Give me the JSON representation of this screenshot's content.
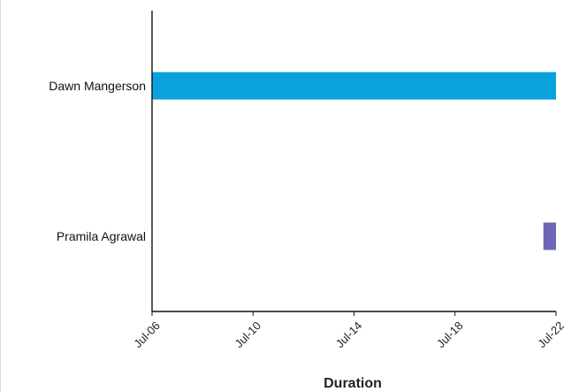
{
  "chart_data": {
    "type": "bar",
    "orientation": "horizontal-gantt",
    "title": "",
    "xlabel": "Duration",
    "ylabel": "",
    "xlim": [
      "Jul-06",
      "Jul-22"
    ],
    "x_tick_labels": [
      "Jul-06",
      "Jul-10",
      "Jul-14",
      "Jul-18",
      "Jul-22"
    ],
    "categories": [
      "Dawn Mangerson",
      "Pramila Agrawal"
    ],
    "bars": [
      {
        "category": "Dawn Mangerson",
        "start": "Jul-06",
        "end": "Jul-22",
        "color": "#0aa2dc"
      },
      {
        "category": "Pramila Agrawal",
        "start": "Jul-21.5",
        "end": "Jul-22",
        "color": "#6d67b5"
      }
    ],
    "grid": false,
    "legend": "none"
  }
}
